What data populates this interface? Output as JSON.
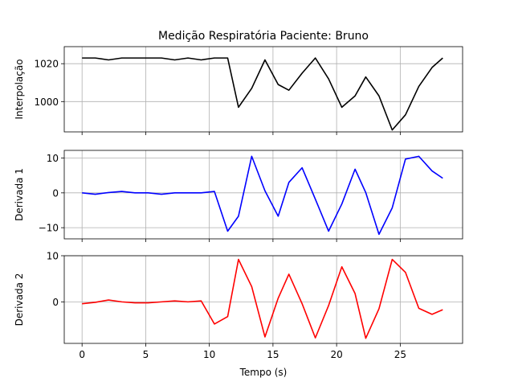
{
  "chart_data": [
    {
      "type": "line",
      "title": "Medição Respiratória Paciente: Bruno",
      "ylabel": "Interpolação",
      "xlabel": "",
      "color": "#000000",
      "xlim": [
        -1.4,
        29.9
      ],
      "ylim": [
        984,
        1029
      ],
      "xticks": [
        0,
        5,
        10,
        15,
        20,
        25
      ],
      "yticks": [
        1000,
        1020
      ],
      "show_xtick_labels": false,
      "grid": true,
      "x": [
        0,
        1.04,
        2.08,
        3.12,
        4.16,
        5.2,
        6.24,
        7.28,
        8.32,
        9.36,
        10.4,
        11.44,
        12.29,
        13.33,
        14.37,
        15.41,
        16.25,
        17.29,
        18.33,
        19.37,
        20.41,
        21.45,
        22.29,
        23.33,
        24.37,
        25.41,
        26.46,
        27.5,
        28.34
      ],
      "y": [
        1023,
        1023,
        1022,
        1023,
        1023,
        1023,
        1023,
        1022,
        1023,
        1022,
        1023,
        1023,
        997,
        1007,
        1022,
        1009,
        1006,
        1015,
        1023,
        1012,
        997,
        1003,
        1013,
        1003,
        985,
        993,
        1008,
        1018,
        1023
      ]
    },
    {
      "type": "line",
      "title": "",
      "ylabel": "Derivada 1",
      "xlabel": "",
      "color": "#0000ff",
      "xlim": [
        -1.4,
        29.9
      ],
      "ylim": [
        -13.2,
        12.2
      ],
      "xticks": [
        0,
        5,
        10,
        15,
        20,
        25
      ],
      "yticks": [
        -10,
        0,
        10
      ],
      "show_xtick_labels": false,
      "grid": true,
      "x": [
        0,
        1.04,
        2.08,
        3.12,
        4.16,
        5.2,
        6.24,
        7.28,
        8.32,
        9.36,
        10.4,
        11.44,
        12.29,
        13.33,
        14.37,
        15.41,
        16.25,
        17.29,
        18.33,
        19.37,
        20.41,
        21.45,
        22.29,
        23.33,
        24.37,
        25.41,
        26.46,
        27.5,
        28.34
      ],
      "y": [
        0,
        -0.4,
        0.1,
        0.4,
        0,
        0,
        -0.4,
        0,
        0,
        0,
        0.4,
        -11,
        -6.7,
        10.5,
        0.6,
        -6.7,
        3,
        7.2,
        -1.8,
        -11,
        -3.2,
        6.8,
        0.1,
        -11.9,
        -4.3,
        9.7,
        10.5,
        6.3,
        4.2
      ]
    },
    {
      "type": "line",
      "title": "",
      "ylabel": "Derivada 2",
      "xlabel": "Tempo (s)",
      "color": "#ff0000",
      "xlim": [
        -1.4,
        29.9
      ],
      "ylim": [
        -9,
        10
      ],
      "xticks": [
        0,
        5,
        10,
        15,
        20,
        25
      ],
      "yticks": [
        0,
        10
      ],
      "show_xtick_labels": true,
      "grid": true,
      "x": [
        0,
        1.04,
        2.08,
        3.12,
        4.16,
        5.2,
        6.24,
        7.28,
        8.32,
        9.36,
        10.4,
        11.44,
        12.29,
        13.33,
        14.37,
        15.41,
        16.25,
        17.29,
        18.33,
        19.37,
        20.41,
        21.45,
        22.29,
        23.33,
        24.37,
        25.41,
        26.46,
        27.5,
        28.34
      ],
      "y": [
        -0.4,
        -0.1,
        0.4,
        0,
        -0.2,
        -0.2,
        0,
        0.2,
        0,
        0.2,
        -4.8,
        -3.2,
        9.2,
        3.3,
        -7.6,
        0.8,
        6,
        -0.4,
        -7.8,
        -0.8,
        7.6,
        1.8,
        -7.9,
        -1.5,
        9.2,
        6.4,
        -1.4,
        -2.7,
        -1.7
      ]
    }
  ]
}
